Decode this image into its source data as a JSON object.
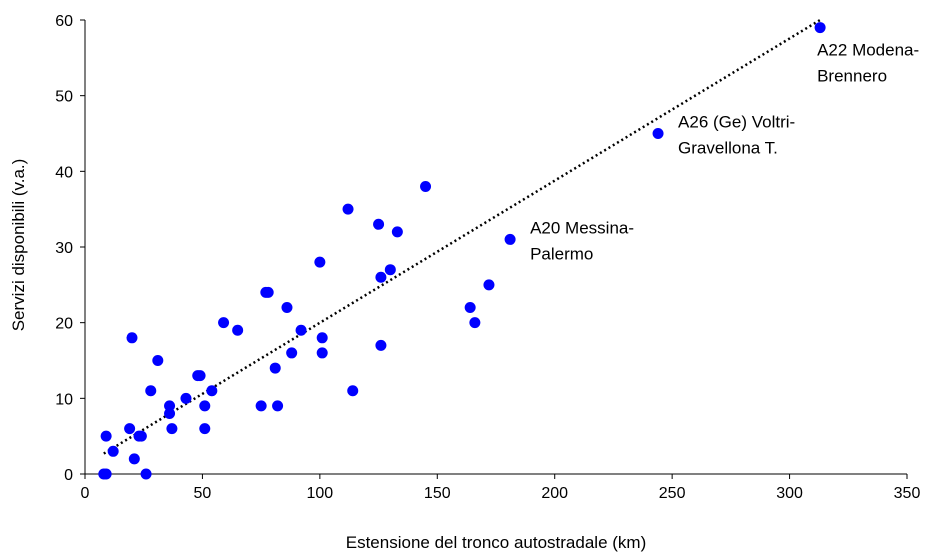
{
  "chart_data": {
    "type": "scatter",
    "title": "",
    "xlabel": "Estensione del tronco autostradale (km)",
    "ylabel": "Servizi disponibili (v.a.)",
    "xlim": [
      0,
      350
    ],
    "ylim": [
      0,
      60
    ],
    "xticks": [
      0,
      50,
      100,
      150,
      200,
      250,
      300,
      350
    ],
    "yticks": [
      0,
      10,
      20,
      30,
      40,
      50,
      60
    ],
    "grid": false,
    "legend": "none",
    "marker_color": "#0000FF",
    "trendline": {
      "style": "dotted",
      "color": "#000000",
      "from": [
        8,
        2.7
      ],
      "to": [
        313,
        60
      ]
    },
    "points": [
      [
        9,
        5
      ],
      [
        8,
        0
      ],
      [
        9,
        0
      ],
      [
        12,
        3
      ],
      [
        19,
        6
      ],
      [
        20,
        18
      ],
      [
        21,
        2
      ],
      [
        23,
        5
      ],
      [
        24,
        5
      ],
      [
        26,
        0
      ],
      [
        28,
        11
      ],
      [
        31,
        15
      ],
      [
        36,
        9
      ],
      [
        36,
        8
      ],
      [
        37,
        6
      ],
      [
        43,
        10
      ],
      [
        48,
        13
      ],
      [
        49,
        13
      ],
      [
        51,
        6
      ],
      [
        51,
        9
      ],
      [
        54,
        11
      ],
      [
        59,
        20
      ],
      [
        65,
        19
      ],
      [
        75,
        9
      ],
      [
        77,
        24
      ],
      [
        78,
        24
      ],
      [
        81,
        14
      ],
      [
        82,
        9
      ],
      [
        86,
        22
      ],
      [
        88,
        16
      ],
      [
        92,
        19
      ],
      [
        100,
        28
      ],
      [
        101,
        18
      ],
      [
        101,
        16
      ],
      [
        112,
        35
      ],
      [
        114,
        11
      ],
      [
        125,
        33
      ],
      [
        126,
        26
      ],
      [
        126,
        17
      ],
      [
        130,
        27
      ],
      [
        133,
        32
      ],
      [
        145,
        38
      ],
      [
        164,
        22
      ],
      [
        166,
        20
      ],
      [
        172,
        25
      ],
      [
        181,
        31
      ],
      [
        244,
        45
      ],
      [
        313,
        59
      ]
    ],
    "annotations": [
      {
        "x": 181,
        "y": 31,
        "lines": [
          "A20 Messina-",
          "Palermo"
        ]
      },
      {
        "x": 244,
        "y": 45,
        "lines": [
          "A26 (Ge) Voltri-",
          "Gravellona T."
        ]
      },
      {
        "x": 313,
        "y": 59,
        "lines": [
          "A22 Modena-",
          "Brennero"
        ]
      }
    ]
  }
}
